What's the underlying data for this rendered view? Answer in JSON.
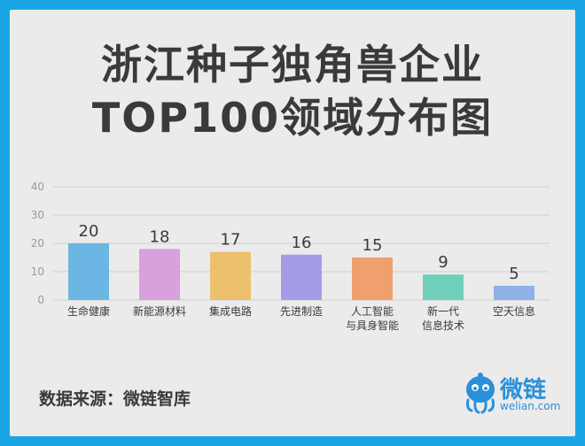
{
  "title_line1": "浙江种子独角兽企业",
  "title_line2": "TOP100领域分布图",
  "source": "数据来源：微链智库",
  "brand": {
    "name": "微链",
    "url": "welian.com"
  },
  "colors": {
    "frame": "#1aa6e4",
    "panel": "#ebebeb",
    "grid": "#cfcfcf",
    "tick": "#9a9a9a",
    "text": "#3a3a3a",
    "brand": "#2a90d8"
  },
  "chart_data": {
    "type": "bar",
    "categories": [
      [
        "生命健康"
      ],
      [
        "新能源材料"
      ],
      [
        "集成电路"
      ],
      [
        "先进制造"
      ],
      [
        "人工智能",
        "与具身智能"
      ],
      [
        "新一代",
        "信息技术"
      ],
      [
        "空天信息"
      ]
    ],
    "values": [
      20,
      18,
      17,
      16,
      15,
      9,
      5
    ],
    "bar_colors": [
      "#6cb6e3",
      "#d8a0dc",
      "#edc06e",
      "#a59ce8",
      "#efa06c",
      "#6fcfba",
      "#8fb1e8"
    ],
    "data_labels": [
      "20",
      "18",
      "17",
      "16",
      "15",
      "9",
      "5"
    ],
    "yticks": [
      "0",
      "10",
      "20",
      "30",
      "40"
    ],
    "ylim": [
      0,
      40
    ],
    "grid": true
  }
}
